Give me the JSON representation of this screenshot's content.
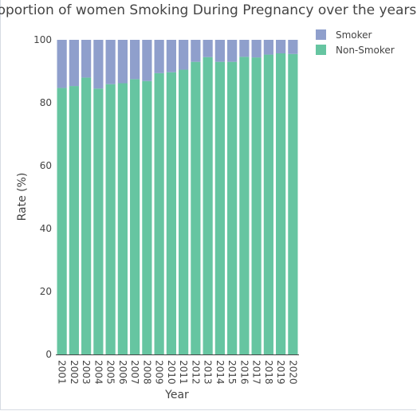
{
  "chart_data": {
    "type": "bar",
    "stacked": true,
    "title": "Proportion of women Smoking During Pregnancy over the years",
    "xlabel": "Year",
    "ylabel": "Rate (%)",
    "ylim": [
      0,
      100
    ],
    "yticks": [
      0,
      20,
      40,
      60,
      80,
      100
    ],
    "grid": false,
    "legend_position": "top-right",
    "categories": [
      "2001",
      "2002",
      "2003",
      "2004",
      "2005",
      "2006",
      "2007",
      "2008",
      "2009",
      "2010",
      "2011",
      "2012",
      "2013",
      "2014",
      "2015",
      "2016",
      "2017",
      "2018",
      "2019",
      "2020"
    ],
    "series": [
      {
        "name": "Non-Smoker",
        "color": "#66c5a1",
        "values": [
          84.7,
          85.3,
          88.0,
          84.5,
          85.9,
          86.2,
          87.5,
          86.9,
          89.4,
          89.7,
          90.5,
          93.0,
          94.5,
          93.0,
          93.0,
          94.6,
          94.4,
          95.3,
          95.7,
          95.5
        ]
      },
      {
        "name": "Smoker",
        "color": "#8f9fcc",
        "values": [
          15.3,
          14.7,
          12.0,
          15.5,
          14.1,
          13.8,
          12.5,
          13.1,
          10.6,
          10.3,
          9.5,
          7.0,
          5.5,
          7.0,
          7.0,
          5.4,
          5.6,
          4.7,
          4.3,
          4.5
        ]
      }
    ],
    "legend": [
      {
        "name": "Smoker",
        "color": "#8f9fcc"
      },
      {
        "name": "Non-Smoker",
        "color": "#66c5a1"
      }
    ]
  }
}
